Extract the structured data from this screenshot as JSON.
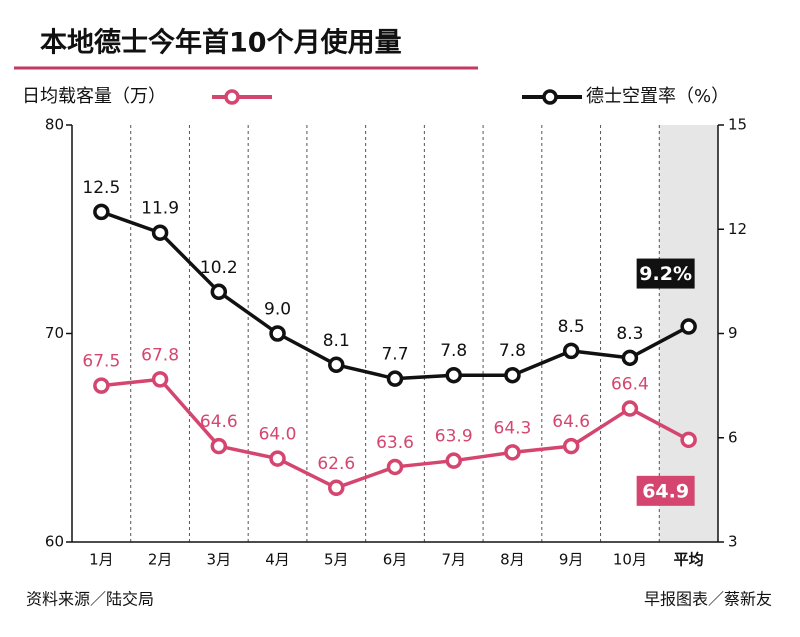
{
  "chart_data": {
    "type": "line",
    "title": "本地德士今年首10个月使用量",
    "categories": [
      "1月",
      "2月",
      "3月",
      "4月",
      "5月",
      "6月",
      "7月",
      "8月",
      "9月",
      "10月",
      "平均"
    ],
    "series": [
      {
        "name": "日均载客量（万）",
        "color": "#d4466f",
        "axis": "y",
        "values": [
          67.5,
          67.8,
          64.6,
          64.0,
          62.6,
          63.6,
          63.9,
          64.3,
          64.6,
          66.4,
          64.9
        ],
        "value_labels": [
          "67.5",
          "67.8",
          "64.6",
          "64.0",
          "62.6",
          "63.6",
          "63.9",
          "64.3",
          "64.6",
          "66.4",
          "64.9"
        ]
      },
      {
        "name": "德士空置率（%）",
        "color": "#111111",
        "axis": "y2",
        "values": [
          12.5,
          11.9,
          10.2,
          9.0,
          8.1,
          7.7,
          7.8,
          7.8,
          8.5,
          8.3,
          9.2
        ],
        "value_labels": [
          "12.5",
          "11.9",
          "10.2",
          "9.0",
          "8.1",
          "7.7",
          "7.8",
          "7.8",
          "8.5",
          "8.3",
          "9.2%"
        ]
      }
    ],
    "ylim": [
      60,
      80
    ],
    "yticks": [
      60,
      70,
      80
    ],
    "y2lim": [
      3,
      15
    ],
    "y2ticks": [
      3,
      6,
      9,
      12,
      15
    ],
    "source": "资料来源／陆交局",
    "credit": "早报图表／蔡新友"
  }
}
